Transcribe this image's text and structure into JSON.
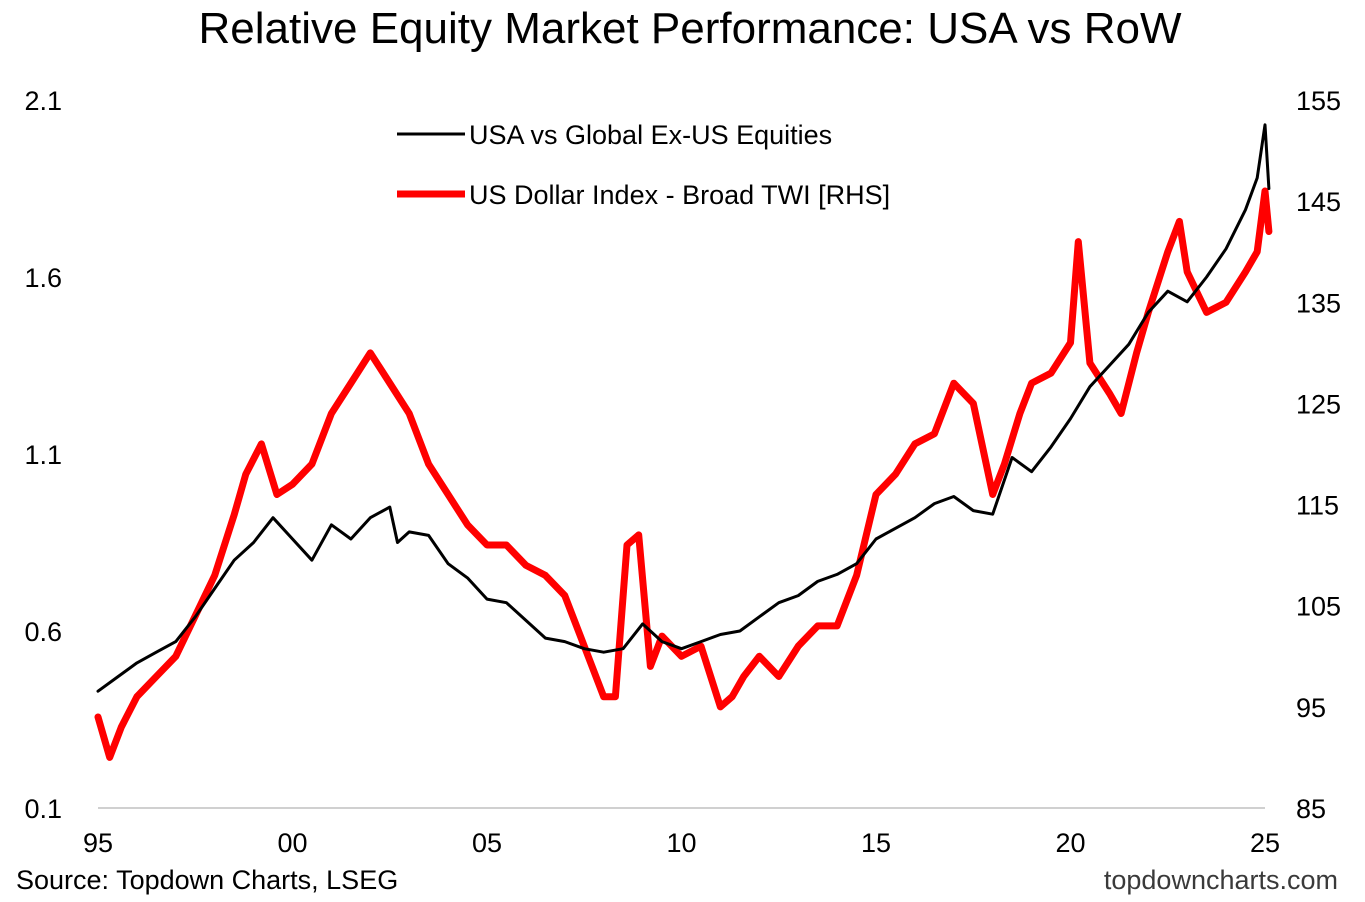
{
  "chart_data": {
    "type": "line",
    "title": "Relative Equity Market Performance: USA vs RoW",
    "source": "Source: Topdown Charts, LSEG",
    "watermark": "topdowncharts.com",
    "x_tick_labels": [
      "95",
      "00",
      "05",
      "10",
      "15",
      "20",
      "25"
    ],
    "x_tick_values": [
      1995,
      2000,
      2005,
      2010,
      2015,
      2020,
      2025
    ],
    "xlim": [
      1995,
      2025
    ],
    "y_left": {
      "lim": [
        0.1,
        2.1
      ],
      "ticks": [
        0.1,
        0.6,
        1.1,
        1.6,
        2.1
      ],
      "tick_labels": [
        "0.1",
        "0.6",
        "1.1",
        "1.6",
        "2.1"
      ]
    },
    "y_right": {
      "lim": [
        85,
        155
      ],
      "ticks": [
        85,
        95,
        105,
        115,
        125,
        135,
        145,
        155
      ],
      "tick_labels": [
        "85",
        "95",
        "105",
        "115",
        "125",
        "135",
        "145",
        "155"
      ]
    },
    "legend_position": "top-center",
    "series": [
      {
        "name": "USA vs Global Ex-US Equities",
        "axis": "left",
        "color": "#000000",
        "x": [
          1995.0,
          1995.5,
          1996.0,
          1996.5,
          1997.0,
          1997.5,
          1998.0,
          1998.5,
          1999.0,
          1999.5,
          2000.0,
          2000.5,
          2001.0,
          2001.5,
          2002.0,
          2002.5,
          2002.7,
          2003.0,
          2003.5,
          2004.0,
          2004.5,
          2005.0,
          2005.5,
          2006.0,
          2006.5,
          2007.0,
          2007.5,
          2008.0,
          2008.5,
          2009.0,
          2009.5,
          2010.0,
          2010.5,
          2011.0,
          2011.5,
          2012.0,
          2012.5,
          2013.0,
          2013.5,
          2014.0,
          2014.5,
          2015.0,
          2015.5,
          2016.0,
          2016.5,
          2017.0,
          2017.5,
          2018.0,
          2018.5,
          2019.0,
          2019.5,
          2020.0,
          2020.5,
          2021.0,
          2021.5,
          2022.0,
          2022.5,
          2023.0,
          2023.5,
          2024.0,
          2024.5,
          2024.8,
          2025.0,
          2025.1
        ],
        "values": [
          0.43,
          0.47,
          0.51,
          0.54,
          0.57,
          0.64,
          0.72,
          0.8,
          0.85,
          0.92,
          0.86,
          0.8,
          0.9,
          0.86,
          0.92,
          0.95,
          0.85,
          0.88,
          0.87,
          0.79,
          0.75,
          0.69,
          0.68,
          0.63,
          0.58,
          0.57,
          0.55,
          0.54,
          0.55,
          0.62,
          0.57,
          0.55,
          0.57,
          0.59,
          0.6,
          0.64,
          0.68,
          0.7,
          0.74,
          0.76,
          0.79,
          0.86,
          0.89,
          0.92,
          0.96,
          0.98,
          0.94,
          0.93,
          1.09,
          1.05,
          1.12,
          1.2,
          1.29,
          1.35,
          1.41,
          1.5,
          1.56,
          1.53,
          1.6,
          1.68,
          1.79,
          1.88,
          2.03,
          1.85
        ]
      },
      {
        "name": "US Dollar Index - Broad TWI [RHS]",
        "axis": "right",
        "color": "#ff0000",
        "x": [
          1995.0,
          1995.3,
          1995.6,
          1996.0,
          1996.5,
          1997.0,
          1997.5,
          1998.0,
          1998.5,
          1998.8,
          1999.2,
          1999.6,
          2000.0,
          2000.5,
          2001.0,
          2001.5,
          2002.0,
          2002.5,
          2003.0,
          2003.5,
          2004.0,
          2004.5,
          2005.0,
          2005.5,
          2006.0,
          2006.5,
          2007.0,
          2007.5,
          2008.0,
          2008.3,
          2008.6,
          2008.9,
          2009.2,
          2009.5,
          2010.0,
          2010.5,
          2011.0,
          2011.3,
          2011.6,
          2012.0,
          2012.5,
          2013.0,
          2013.5,
          2014.0,
          2014.5,
          2015.0,
          2015.5,
          2016.0,
          2016.5,
          2017.0,
          2017.5,
          2018.0,
          2018.3,
          2018.7,
          2019.0,
          2019.5,
          2020.0,
          2020.2,
          2020.5,
          2021.0,
          2021.3,
          2021.7,
          2022.0,
          2022.5,
          2022.8,
          2023.0,
          2023.5,
          2024.0,
          2024.5,
          2024.8,
          2025.0,
          2025.1
        ],
        "values": [
          94,
          90,
          93,
          96,
          98,
          100,
          104,
          108,
          114,
          118,
          121,
          116,
          117,
          119,
          124,
          127,
          130,
          127,
          124,
          119,
          116,
          113,
          111,
          111,
          109,
          108,
          106,
          101,
          96,
          96,
          111,
          112,
          99,
          102,
          100,
          101,
          95,
          96,
          98,
          100,
          98,
          101,
          103,
          103,
          108,
          116,
          118,
          121,
          122,
          127,
          125,
          116,
          119,
          124,
          127,
          128,
          131,
          141,
          129,
          126,
          124,
          130,
          134,
          140,
          143,
          138,
          134,
          135,
          138,
          140,
          146,
          142
        ]
      }
    ]
  }
}
